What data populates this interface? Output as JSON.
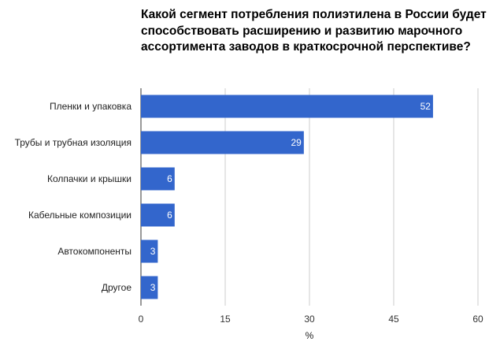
{
  "chart_data": {
    "type": "bar",
    "orientation": "horizontal",
    "title": "Какой сегмент потребления полиэтилена в России будет способствовать расширению и развитию марочного ассортимента заводов в краткосрочной перспективе?",
    "categories": [
      "Пленки и упаковка",
      "Трубы и трубная изоляция",
      "Колпачки и крышки",
      "Кабельные композиции",
      "Автокомпоненты",
      "Другое"
    ],
    "values": [
      52,
      29,
      6,
      6,
      3,
      3
    ],
    "xlabel": "%",
    "ylabel": "",
    "xlim": [
      0,
      60
    ],
    "xticks": [
      0,
      15,
      30,
      45,
      60
    ],
    "grid": true,
    "legend": "none",
    "bar_color": "#3366cc",
    "grid_color": "#cccccc"
  }
}
